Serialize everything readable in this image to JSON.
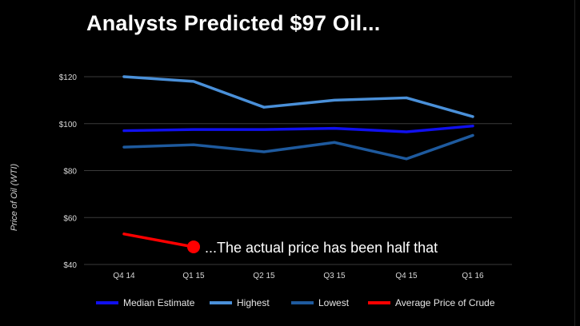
{
  "title": "Analysts Predicted $97 Oil...",
  "chart_data": {
    "type": "line",
    "categories": [
      "Q4 14",
      "Q1 15",
      "Q2 15",
      "Q3 15",
      "Q4 15",
      "Q1 16"
    ],
    "ylabel": "Price of Oil (WTI)",
    "ylim": [
      40,
      130
    ],
    "yticks": [
      "$40",
      "$60",
      "$80",
      "$100",
      "$120"
    ],
    "ytick_values": [
      40,
      60,
      80,
      100,
      120
    ],
    "grid": true,
    "legend_position": "bottom",
    "series": [
      {
        "name": "Median Estimate",
        "color": "#1010ee",
        "values": [
          97,
          97.5,
          97.5,
          98,
          96.5,
          99
        ]
      },
      {
        "name": "Highest",
        "color": "#4a90d9",
        "values": [
          120,
          118,
          107,
          110,
          111,
          103
        ]
      },
      {
        "name": "Lowest",
        "color": "#1e5a9e",
        "values": [
          90,
          91,
          88,
          92,
          85,
          95
        ]
      },
      {
        "name": "Average Price of Crude",
        "color": "#ff0000",
        "values": [
          53,
          47.5,
          null,
          null,
          null,
          null
        ]
      }
    ],
    "annotation": "...The actual price has been half that"
  }
}
